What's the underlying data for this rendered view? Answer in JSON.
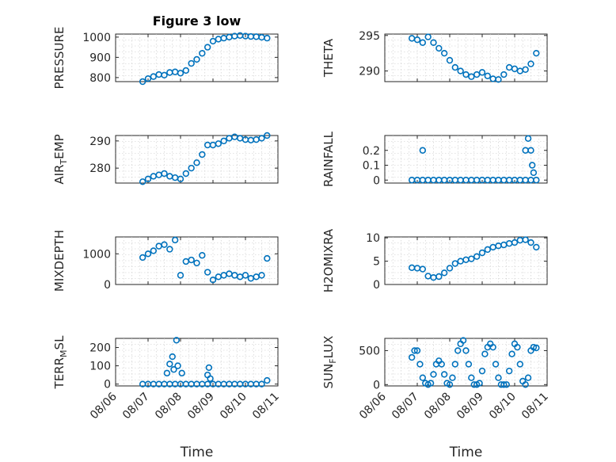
{
  "chart_data": [
    {
      "type": "scatter",
      "ylabel": "PRESSURE",
      "title": "Figure 3 low",
      "ylim": [
        780,
        1015
      ],
      "yticks": [
        800,
        900,
        1000
      ],
      "ytick_labels": [
        "800",
        "900",
        "1000"
      ],
      "xlim": [
        "08/06",
        "08/11"
      ],
      "grid": true,
      "x": [
        "08/06 20:00",
        "08/07 00:00",
        "08/07 04:00",
        "08/07 08:00",
        "08/07 12:00",
        "08/07 16:00",
        "08/07 20:00",
        "08/08 00:00",
        "08/08 04:00",
        "08/08 08:00",
        "08/08 12:00",
        "08/08 16:00",
        "08/08 20:00",
        "08/09 00:00",
        "08/09 04:00",
        "08/09 08:00",
        "08/09 12:00",
        "08/09 16:00",
        "08/09 20:00",
        "08/10 00:00",
        "08/10 04:00",
        "08/10 08:00",
        "08/10 12:00",
        "08/10 16:00"
      ],
      "y": [
        780,
        795,
        805,
        815,
        812,
        825,
        828,
        822,
        835,
        870,
        890,
        920,
        950,
        980,
        990,
        995,
        1000,
        1005,
        1008,
        1005,
        1003,
        1002,
        999,
        995
      ]
    },
    {
      "type": "scatter",
      "ylabel": "THETA",
      "ylim": [
        288.5,
        295.2
      ],
      "yticks": [
        290,
        295
      ],
      "ytick_labels": [
        "290",
        "295"
      ],
      "xlim": [
        "08/06",
        "08/11"
      ],
      "grid": true,
      "x": [
        "08/06 20:00",
        "08/07 00:00",
        "08/07 04:00",
        "08/07 08:00",
        "08/07 12:00",
        "08/07 16:00",
        "08/07 20:00",
        "08/08 00:00",
        "08/08 04:00",
        "08/08 08:00",
        "08/08 12:00",
        "08/08 16:00",
        "08/08 20:00",
        "08/09 00:00",
        "08/09 04:00",
        "08/09 08:00",
        "08/09 12:00",
        "08/09 16:00",
        "08/09 20:00",
        "08/10 00:00",
        "08/10 04:00",
        "08/10 08:00",
        "08/10 12:00",
        "08/10 16:00"
      ],
      "y": [
        294.6,
        294.4,
        294.0,
        294.8,
        294.0,
        293.2,
        292.5,
        291.5,
        290.5,
        290.0,
        289.5,
        289.2,
        289.5,
        289.8,
        289.3,
        288.9,
        288.8,
        289.5,
        290.5,
        290.3,
        290.0,
        290.2,
        291.0,
        292.5
      ]
    },
    {
      "type": "scatter",
      "ylabel": "AIR_TEMP",
      "ylim": [
        274.5,
        292
      ],
      "yticks": [
        280,
        290
      ],
      "ytick_labels": [
        "280",
        "290"
      ],
      "xlim": [
        "08/06",
        "08/11"
      ],
      "grid": true,
      "x": [
        "08/06 20:00",
        "08/07 00:00",
        "08/07 04:00",
        "08/07 08:00",
        "08/07 12:00",
        "08/07 16:00",
        "08/07 20:00",
        "08/08 00:00",
        "08/08 04:00",
        "08/08 08:00",
        "08/08 12:00",
        "08/08 16:00",
        "08/08 20:00",
        "08/09 00:00",
        "08/09 04:00",
        "08/09 08:00",
        "08/09 12:00",
        "08/09 16:00",
        "08/09 20:00",
        "08/10 00:00",
        "08/10 04:00",
        "08/10 08:00",
        "08/10 12:00",
        "08/10 16:00"
      ],
      "y": [
        275,
        276,
        277,
        277.5,
        278,
        277,
        276.5,
        276,
        278,
        280,
        282,
        285,
        288.5,
        288.5,
        289,
        290,
        291,
        291.5,
        291,
        290.5,
        290.3,
        290.5,
        291,
        292
      ]
    },
    {
      "type": "scatter",
      "ylabel": "RAINFALL",
      "ylim": [
        -0.02,
        0.3
      ],
      "yticks": [
        0,
        0.1,
        0.2
      ],
      "ytick_labels": [
        "0",
        "0.1",
        "0.2"
      ],
      "xlim": [
        "08/06",
        "08/11"
      ],
      "grid": true,
      "x": [
        "08/06 20:00",
        "08/07 00:00",
        "08/07 04:00",
        "08/07 08:00",
        "08/07 12:00",
        "08/07 16:00",
        "08/07 20:00",
        "08/08 00:00",
        "08/08 04:00",
        "08/08 08:00",
        "08/08 12:00",
        "08/08 16:00",
        "08/08 20:00",
        "08/09 00:00",
        "08/09 04:00",
        "08/09 08:00",
        "08/09 12:00",
        "08/09 16:00",
        "08/09 20:00",
        "08/10 00:00",
        "08/10 04:00",
        "08/10 08:00",
        "08/10 12:00",
        "08/10 16:00",
        "08/07 04:00",
        "08/10 08:00",
        "08/10 10:00",
        "08/10 12:00",
        "08/10 13:00",
        "08/10 14:00"
      ],
      "y": [
        0,
        0,
        0,
        0,
        0,
        0,
        0,
        0,
        0,
        0,
        0,
        0,
        0,
        0,
        0,
        0,
        0,
        0,
        0,
        0,
        0,
        0,
        0,
        0,
        0.2,
        0.2,
        0.28,
        0.2,
        0.1,
        0.05
      ]
    },
    {
      "type": "scatter",
      "ylabel": "MIXDEPTH",
      "ylim": [
        0,
        1550
      ],
      "yticks": [
        0,
        1000
      ],
      "ytick_labels": [
        "0",
        "1000"
      ],
      "xlim": [
        "08/06",
        "08/11"
      ],
      "grid": true,
      "x": [
        "08/06 20:00",
        "08/07 00:00",
        "08/07 04:00",
        "08/07 08:00",
        "08/07 12:00",
        "08/07 16:00",
        "08/07 20:00",
        "08/08 00:00",
        "08/08 04:00",
        "08/08 08:00",
        "08/08 12:00",
        "08/08 16:00",
        "08/08 20:00",
        "08/09 00:00",
        "08/09 04:00",
        "08/09 08:00",
        "08/09 12:00",
        "08/09 16:00",
        "08/09 20:00",
        "08/10 00:00",
        "08/10 04:00",
        "08/10 08:00",
        "08/10 12:00",
        "08/10 16:00"
      ],
      "y": [
        880,
        1000,
        1100,
        1250,
        1300,
        1150,
        1450,
        300,
        750,
        800,
        700,
        950,
        400,
        150,
        250,
        300,
        350,
        300,
        250,
        300,
        200,
        250,
        300,
        850
      ]
    },
    {
      "type": "scatter",
      "ylabel": "H2OMIXRA",
      "ylim": [
        0,
        10.2
      ],
      "yticks": [
        0,
        5,
        10
      ],
      "ytick_labels": [
        "0",
        "5",
        "10"
      ],
      "xlim": [
        "08/06",
        "08/11"
      ],
      "grid": true,
      "x": [
        "08/06 20:00",
        "08/07 00:00",
        "08/07 04:00",
        "08/07 08:00",
        "08/07 12:00",
        "08/07 16:00",
        "08/07 20:00",
        "08/08 00:00",
        "08/08 04:00",
        "08/08 08:00",
        "08/08 12:00",
        "08/08 16:00",
        "08/08 20:00",
        "08/09 00:00",
        "08/09 04:00",
        "08/09 08:00",
        "08/09 12:00",
        "08/09 16:00",
        "08/09 20:00",
        "08/10 00:00",
        "08/10 04:00",
        "08/10 08:00",
        "08/10 12:00",
        "08/10 16:00"
      ],
      "y": [
        3.6,
        3.5,
        3.3,
        1.8,
        1.5,
        1.7,
        2.5,
        3.5,
        4.5,
        5.0,
        5.3,
        5.5,
        6.0,
        6.8,
        7.5,
        8.0,
        8.3,
        8.5,
        8.8,
        9.0,
        9.5,
        9.6,
        9.0,
        8.0
      ]
    },
    {
      "type": "scatter",
      "ylabel": "TERR_MSL",
      "ylim": [
        -10,
        250
      ],
      "yticks": [
        0,
        100,
        200
      ],
      "ytick_labels": [
        "0",
        "100",
        "200"
      ],
      "xlim": [
        "08/06",
        "08/11"
      ],
      "xticks": [
        "08/06",
        "08/07",
        "08/08",
        "08/09",
        "08/10",
        "08/11"
      ],
      "xlabel": "Time",
      "grid": true,
      "x": [
        "08/06 20:00",
        "08/07 00:00",
        "08/07 04:00",
        "08/07 08:00",
        "08/07 12:00",
        "08/07 16:00",
        "08/07 20:00",
        "08/08 00:00",
        "08/08 04:00",
        "08/08 08:00",
        "08/08 12:00",
        "08/08 16:00",
        "08/08 20:00",
        "08/09 00:00",
        "08/09 04:00",
        "08/09 08:00",
        "08/09 12:00",
        "08/09 16:00",
        "08/09 20:00",
        "08/10 00:00",
        "08/10 04:00",
        "08/10 08:00",
        "08/10 12:00",
        "08/10 16:00",
        "08/07 14:00",
        "08/07 16:00",
        "08/07 18:00",
        "08/07 19:00",
        "08/07 21:00",
        "08/07 22:00",
        "08/08 01:00",
        "08/08 20:00",
        "08/08 21:00",
        "08/08 22:00"
      ],
      "y": [
        0,
        0,
        0,
        0,
        0,
        0,
        0,
        0,
        0,
        0,
        0,
        0,
        0,
        0,
        0,
        0,
        0,
        0,
        0,
        0,
        0,
        0,
        0,
        20,
        60,
        110,
        150,
        80,
        240,
        100,
        60,
        50,
        90,
        30
      ]
    },
    {
      "type": "scatter",
      "ylabel": "SUN_FLUX",
      "ylim": [
        -20,
        680
      ],
      "yticks": [
        0,
        500
      ],
      "ytick_labels": [
        "0",
        "500"
      ],
      "xlim": [
        "08/06",
        "08/11"
      ],
      "xticks": [
        "08/06",
        "08/07",
        "08/08",
        "08/09",
        "08/10",
        "08/11"
      ],
      "xlabel": "Time",
      "grid": true,
      "x": [
        "08/06 20:00",
        "08/06 22:00",
        "08/07 00:00",
        "08/07 02:00",
        "08/07 04:00",
        "08/07 06:00",
        "08/07 08:00",
        "08/07 10:00",
        "08/07 12:00",
        "08/07 14:00",
        "08/07 16:00",
        "08/07 18:00",
        "08/07 20:00",
        "08/07 22:00",
        "08/08 00:00",
        "08/08 02:00",
        "08/08 04:00",
        "08/08 06:00",
        "08/08 08:00",
        "08/08 10:00",
        "08/08 12:00",
        "08/08 14:00",
        "08/08 16:00",
        "08/08 18:00",
        "08/08 20:00",
        "08/08 22:00",
        "08/09 00:00",
        "08/09 02:00",
        "08/09 04:00",
        "08/09 06:00",
        "08/09 08:00",
        "08/09 10:00",
        "08/09 12:00",
        "08/09 14:00",
        "08/09 16:00",
        "08/09 18:00",
        "08/09 20:00",
        "08/09 22:00",
        "08/10 00:00",
        "08/10 02:00",
        "08/10 04:00",
        "08/10 06:00",
        "08/10 08:00",
        "08/10 10:00",
        "08/10 12:00",
        "08/10 14:00",
        "08/10 16:00"
      ],
      "y": [
        400,
        500,
        500,
        300,
        100,
        20,
        0,
        20,
        150,
        300,
        350,
        300,
        150,
        20,
        0,
        100,
        300,
        500,
        600,
        650,
        500,
        300,
        100,
        0,
        0,
        20,
        200,
        450,
        550,
        600,
        550,
        300,
        100,
        0,
        0,
        0,
        200,
        450,
        600,
        550,
        300,
        50,
        0,
        100,
        500,
        550,
        540
      ]
    }
  ]
}
